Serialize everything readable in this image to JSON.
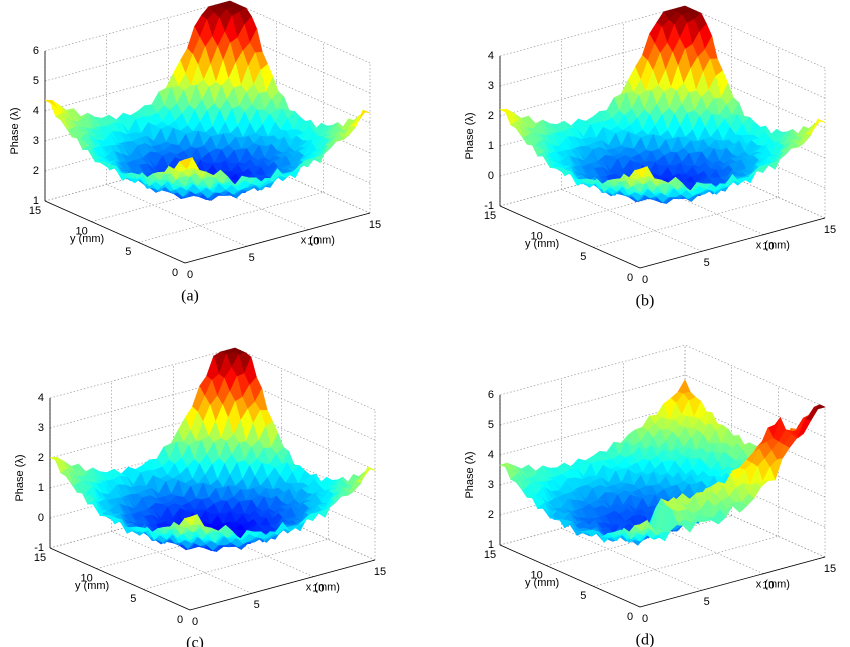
{
  "chart_data": [
    {
      "type": "surface",
      "panel_label": "(a)",
      "xlabel": "x (mm)",
      "ylabel": "y (mm)",
      "zlabel": "Phase (λ)",
      "xlim": [
        0,
        15
      ],
      "xticks": [
        0,
        5,
        10,
        15
      ],
      "ylim": [
        0,
        15
      ],
      "yticks": [
        0,
        5,
        10,
        15
      ],
      "zlim": [
        1,
        6
      ],
      "zticks": [
        1,
        2,
        3,
        4,
        5,
        6
      ]
    },
    {
      "type": "surface",
      "panel_label": "(b)",
      "xlabel": "x (mm)",
      "ylabel": "y (mm)",
      "zlabel": "Phase (λ)",
      "xlim": [
        0,
        15
      ],
      "xticks": [
        0,
        5,
        10,
        15
      ],
      "ylim": [
        0,
        15
      ],
      "yticks": [
        0,
        5,
        10,
        15
      ],
      "zlim": [
        -1,
        4
      ],
      "zticks": [
        -1,
        0,
        1,
        2,
        3,
        4
      ]
    },
    {
      "type": "surface",
      "panel_label": "(c)",
      "xlabel": "x (mm)",
      "ylabel": "y (mm)",
      "zlabel": "Phase (λ)",
      "xlim": [
        0,
        15
      ],
      "xticks": [
        0,
        5,
        10,
        15
      ],
      "ylim": [
        0,
        15
      ],
      "yticks": [
        0,
        5,
        10,
        15
      ],
      "zlim": [
        -1,
        4
      ],
      "zticks": [
        -1,
        0,
        1,
        2,
        3,
        4
      ]
    },
    {
      "type": "surface",
      "panel_label": "(d)",
      "xlabel": "x (mm)",
      "ylabel": "y (mm)",
      "zlabel": "Phase (λ)",
      "xlim": [
        0,
        15
      ],
      "xticks": [
        0,
        5,
        10,
        15
      ],
      "ylim": [
        0,
        15
      ],
      "yticks": [
        0,
        5,
        10,
        15
      ],
      "zlim": [
        1,
        6
      ],
      "zticks": [
        1,
        2,
        3,
        4,
        5,
        6
      ]
    }
  ]
}
